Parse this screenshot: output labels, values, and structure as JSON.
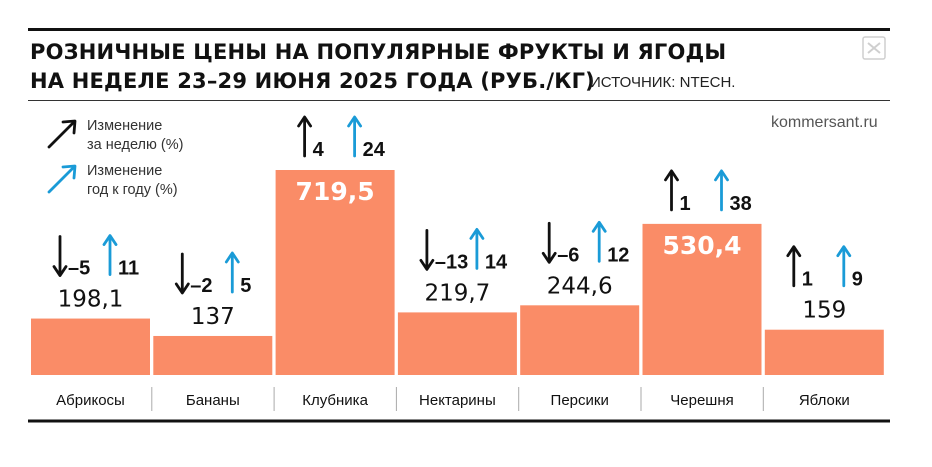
{
  "header": {
    "title_line1": "РОЗНИЧНЫЕ ЦЕНЫ НА ПОПУЛЯРНЫЕ ФРУКТЫ И ЯГОДЫ",
    "title_line2": "НА НЕДЕЛЕ 23–29 ИЮНЯ 2025 ГОДА (РУБ./КГ)",
    "source": "ИСТОЧНИК: NTECH.",
    "site": "kommersant.ru",
    "logo_icon": "kommersant-logo-icon"
  },
  "legend": {
    "weekly_label_line1": "Изменение",
    "weekly_label_line2": "за неделю (%)",
    "yearly_label_line1": "Изменение",
    "yearly_label_line2": "год к году (%)",
    "weekly_icon": "black-arrow-up-right-icon",
    "yearly_icon": "blue-arrow-up-right-icon"
  },
  "colors": {
    "bar": "#FA8C67",
    "weekly": "#111111",
    "yearly": "#1A9BD7",
    "value_on_bar": "#ffffff",
    "value_text": "#111111"
  },
  "chart_data": {
    "type": "bar",
    "title": "РОЗНИЧНЫЕ ЦЕНЫ НА ПОПУЛЯРНЫЕ ФРУКТЫ И ЯГОДЫ НА НЕДЕЛЕ 23–29 ИЮНЯ 2025 ГОДА (РУБ./КГ)",
    "categories": [
      "Абрикосы",
      "Бананы",
      "Клубника",
      "Нектарины",
      "Персики",
      "Черешня",
      "Яблоки"
    ],
    "values": [
      198.1,
      137,
      719.5,
      219.7,
      244.6,
      530.4,
      159
    ],
    "value_labels": [
      "198,1",
      "137",
      "719,5",
      "219,7",
      "244,6",
      "530,4",
      "159"
    ],
    "weekly_change": [
      -5,
      -2,
      4,
      -13,
      -6,
      1,
      1
    ],
    "weekly_change_labels": [
      "–5",
      "–2",
      "4",
      "–13",
      "–6",
      "1",
      "1"
    ],
    "yearly_change": [
      11,
      5,
      24,
      14,
      12,
      38,
      9
    ],
    "yearly_change_labels": [
      "11",
      "5",
      "24",
      "14",
      "12",
      "38",
      "9"
    ],
    "ylim": [
      0,
      719.5
    ],
    "grid": false,
    "legend_position": "top-left"
  }
}
